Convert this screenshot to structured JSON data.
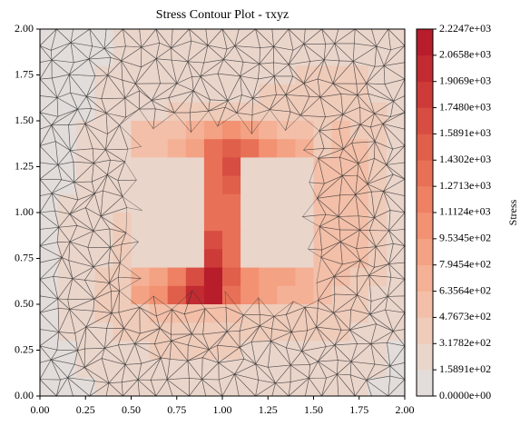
{
  "chart_data": {
    "type": "contour",
    "title": "Stress Contour Plot - τxyz",
    "colorbar_label": "Stress",
    "x": [
      0.05,
      0.15,
      0.25,
      0.35,
      0.45,
      0.55,
      0.65,
      0.75,
      0.85,
      0.95,
      1.05,
      1.15,
      1.25,
      1.35,
      1.45,
      1.55,
      1.65,
      1.75,
      1.85,
      1.95
    ],
    "y": [
      1.95,
      1.85,
      1.75,
      1.65,
      1.55,
      1.45,
      1.35,
      1.25,
      1.15,
      1.05,
      0.95,
      0.85,
      0.75,
      0.65,
      0.55,
      0.45,
      0.35,
      0.25,
      0.15,
      0.05
    ],
    "z": [
      [
        150,
        150,
        150,
        150,
        200,
        200,
        200,
        200,
        200,
        250,
        250,
        250,
        250,
        250,
        250,
        250,
        300,
        300,
        250,
        200
      ],
      [
        150,
        150,
        150,
        150,
        200,
        200,
        200,
        250,
        250,
        250,
        250,
        250,
        300,
        300,
        300,
        300,
        300,
        300,
        250,
        200
      ],
      [
        150,
        150,
        150,
        200,
        200,
        200,
        250,
        250,
        250,
        250,
        300,
        300,
        300,
        300,
        350,
        350,
        400,
        350,
        300,
        200
      ],
      [
        150,
        150,
        150,
        200,
        200,
        250,
        250,
        300,
        300,
        300,
        300,
        300,
        350,
        350,
        400,
        400,
        450,
        400,
        300,
        200
      ],
      [
        150,
        150,
        150,
        200,
        250,
        300,
        300,
        350,
        350,
        400,
        400,
        350,
        350,
        350,
        400,
        450,
        450,
        450,
        350,
        200
      ],
      [
        150,
        150,
        200,
        200,
        300,
        500,
        550,
        600,
        700,
        900,
        1000,
        900,
        700,
        600,
        550,
        450,
        500,
        450,
        350,
        200
      ],
      [
        150,
        150,
        200,
        200,
        300,
        500,
        600,
        700,
        900,
        1300,
        1500,
        1300,
        1000,
        800,
        650,
        450,
        500,
        500,
        350,
        200
      ],
      [
        150,
        150,
        200,
        250,
        300,
        250,
        250,
        250,
        250,
        1400,
        1600,
        250,
        250,
        250,
        250,
        500,
        550,
        500,
        350,
        200
      ],
      [
        150,
        150,
        200,
        250,
        300,
        250,
        250,
        250,
        250,
        1400,
        1500,
        250,
        250,
        250,
        250,
        500,
        550,
        500,
        350,
        200
      ],
      [
        150,
        200,
        200,
        250,
        300,
        250,
        250,
        250,
        250,
        1300,
        1400,
        250,
        250,
        250,
        250,
        500,
        550,
        500,
        350,
        200
      ],
      [
        150,
        200,
        250,
        250,
        350,
        250,
        250,
        250,
        250,
        1400,
        1300,
        250,
        250,
        250,
        250,
        500,
        550,
        500,
        350,
        200
      ],
      [
        150,
        200,
        250,
        300,
        400,
        250,
        250,
        250,
        250,
        1600,
        1300,
        250,
        250,
        250,
        250,
        550,
        550,
        500,
        350,
        200
      ],
      [
        150,
        200,
        250,
        300,
        400,
        250,
        250,
        250,
        250,
        1800,
        1400,
        250,
        250,
        250,
        250,
        550,
        550,
        500,
        350,
        200
      ],
      [
        150,
        200,
        250,
        350,
        450,
        700,
        900,
        1200,
        1700,
        2100,
        1500,
        1000,
        900,
        800,
        750,
        550,
        500,
        450,
        350,
        200
      ],
      [
        150,
        200,
        250,
        350,
        450,
        800,
        1100,
        1500,
        2000,
        2200,
        1300,
        1000,
        800,
        700,
        650,
        500,
        450,
        400,
        300,
        200
      ],
      [
        150,
        200,
        250,
        350,
        400,
        450,
        500,
        550,
        600,
        600,
        500,
        450,
        400,
        400,
        400,
        400,
        400,
        350,
        300,
        200
      ],
      [
        150,
        200,
        250,
        300,
        350,
        400,
        400,
        400,
        400,
        400,
        400,
        400,
        350,
        350,
        350,
        350,
        350,
        300,
        250,
        200
      ],
      [
        150,
        150,
        200,
        250,
        300,
        300,
        350,
        350,
        350,
        350,
        350,
        300,
        300,
        300,
        300,
        300,
        300,
        250,
        200,
        150
      ],
      [
        150,
        150,
        200,
        200,
        250,
        250,
        300,
        300,
        300,
        300,
        300,
        250,
        250,
        250,
        250,
        250,
        250,
        200,
        200,
        150
      ],
      [
        100,
        150,
        150,
        200,
        200,
        250,
        250,
        250,
        250,
        250,
        250,
        200,
        200,
        200,
        200,
        200,
        200,
        200,
        150,
        100
      ]
    ],
    "xlim": [
      0,
      2
    ],
    "ylim": [
      0,
      2
    ],
    "xticks": [
      {
        "value": 0,
        "label": "0.00"
      },
      {
        "value": 0.25,
        "label": "0.25"
      },
      {
        "value": 0.5,
        "label": "0.50"
      },
      {
        "value": 0.75,
        "label": "0.75"
      },
      {
        "value": 1,
        "label": "1.00"
      },
      {
        "value": 1.25,
        "label": "1.25"
      },
      {
        "value": 1.5,
        "label": "1.50"
      },
      {
        "value": 1.75,
        "label": "1.75"
      },
      {
        "value": 2,
        "label": "2.00"
      }
    ],
    "yticks": [
      {
        "value": 0,
        "label": "0.00"
      },
      {
        "value": 0.25,
        "label": "0.25"
      },
      {
        "value": 0.5,
        "label": "0.50"
      },
      {
        "value": 0.75,
        "label": "0.75"
      },
      {
        "value": 1,
        "label": "1.00"
      },
      {
        "value": 1.25,
        "label": "1.25"
      },
      {
        "value": 1.5,
        "label": "1.50"
      },
      {
        "value": 1.75,
        "label": "1.75"
      },
      {
        "value": 2,
        "label": "2.00"
      }
    ],
    "clim": [
      0,
      2224.7
    ],
    "cticks": [
      {
        "value": 0,
        "label": "0.0000e+00"
      },
      {
        "value": 158.91,
        "label": "1.5891e+02"
      },
      {
        "value": 317.82,
        "label": "3.1782e+02"
      },
      {
        "value": 476.73,
        "label": "4.7673e+02"
      },
      {
        "value": 635.64,
        "label": "6.3564e+02"
      },
      {
        "value": 794.54,
        "label": "7.9454e+02"
      },
      {
        "value": 953.45,
        "label": "9.5345e+02"
      },
      {
        "value": 1112.4,
        "label": "1.1124e+03"
      },
      {
        "value": 1271.3,
        "label": "1.2713e+03"
      },
      {
        "value": 1430.2,
        "label": "1.4302e+03"
      },
      {
        "value": 1589.1,
        "label": "1.5891e+03"
      },
      {
        "value": 1748,
        "label": "1.7480e+03"
      },
      {
        "value": 1906.9,
        "label": "1.9069e+03"
      },
      {
        "value": 2065.8,
        "label": "2.0658e+03"
      },
      {
        "value": 2224.7,
        "label": "2.2247e+03"
      }
    ],
    "colors": [
      "#e2ddda",
      "#ead5cb",
      "#efcbba",
      "#f3bfa8",
      "#f5b196",
      "#f4a284",
      "#f29273",
      "#ee8163",
      "#e87056",
      "#e05f4b",
      "#d74d41",
      "#cc3b38",
      "#c12b31",
      "#b81d2b"
    ],
    "mesh": true
  }
}
